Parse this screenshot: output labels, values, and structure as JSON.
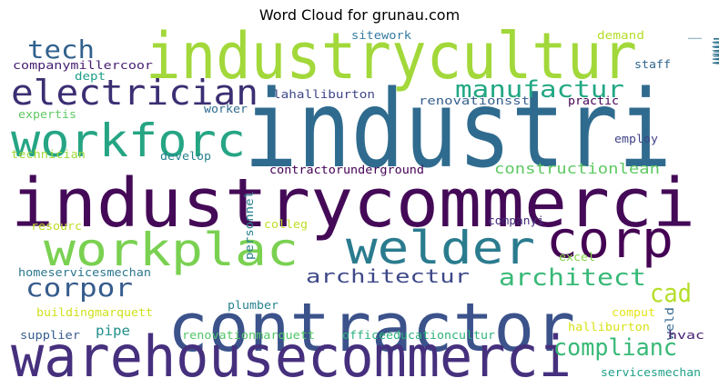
{
  "chart_data": {
    "type": "wordcloud",
    "title": "Word Cloud for grunau.com",
    "words": [
      {
        "text": "industri",
        "color": "#2f6b8e"
      },
      {
        "text": "industrycommerci",
        "color": "#440a57"
      },
      {
        "text": "industrycultur",
        "color": "#a2d83a"
      },
      {
        "text": "contractor",
        "color": "#3b528b"
      },
      {
        "text": "warehousecommerci",
        "color": "#46307e"
      },
      {
        "text": "workplac",
        "color": "#7ad151"
      },
      {
        "text": "welder",
        "color": "#2a7b8e"
      },
      {
        "text": "workforc",
        "color": "#25a584"
      },
      {
        "text": "electrician",
        "color": "#3c2e73"
      },
      {
        "text": "corp",
        "color": "#440154"
      },
      {
        "text": "tech",
        "color": "#30618d"
      },
      {
        "text": "corpor",
        "color": "#365c8d"
      },
      {
        "text": "manufactur",
        "color": "#22a884"
      },
      {
        "text": "architect",
        "color": "#38b977"
      },
      {
        "text": "complianc",
        "color": "#38b977"
      },
      {
        "text": "architectur",
        "color": "#3e4989"
      },
      {
        "text": "compani",
        "color": "#2c718e"
      },
      {
        "text": "cad",
        "color": "#b5de2b"
      },
      {
        "text": "constructionlean",
        "color": "#5ec962"
      },
      {
        "text": "pipe",
        "color": "#22908c"
      },
      {
        "text": "sitework",
        "color": "#357ba2"
      },
      {
        "text": "demand",
        "color": "#b5de2b"
      },
      {
        "text": "companymillercoor",
        "color": "#482173"
      },
      {
        "text": "staff",
        "color": "#31668e"
      },
      {
        "text": "dept",
        "color": "#1f9e89"
      },
      {
        "text": "lahalliburton",
        "color": "#3f4788"
      },
      {
        "text": "renovationsst",
        "color": "#355f8d"
      },
      {
        "text": "practic",
        "color": "#440154"
      },
      {
        "text": "expertis",
        "color": "#5ec962"
      },
      {
        "text": "worker",
        "color": "#2f6c8e"
      },
      {
        "text": "employ",
        "color": "#404387"
      },
      {
        "text": "technician",
        "color": "#a0da39"
      },
      {
        "text": "develop",
        "color": "#26818e"
      },
      {
        "text": "contractorunderground",
        "color": "#440154"
      },
      {
        "text": "resourc",
        "color": "#bddf26"
      },
      {
        "text": "personnel",
        "color": "#277f8e"
      },
      {
        "text": "colleg",
        "color": "#bddf26"
      },
      {
        "text": "companyi",
        "color": "#472d7b"
      },
      {
        "text": "homeservicesmechan",
        "color": "#2a768e"
      },
      {
        "text": "excel",
        "color": "#86d549"
      },
      {
        "text": "plumber",
        "color": "#26828e"
      },
      {
        "text": "buildingmarquett",
        "color": "#d0e11c"
      },
      {
        "text": "comput",
        "color": "#e5e419"
      },
      {
        "text": "supplier",
        "color": "#365d8d"
      },
      {
        "text": "renovationmarquett",
        "color": "#52c569"
      },
      {
        "text": "officeeducationcultur",
        "color": "#2db27d"
      },
      {
        "text": "halliburton",
        "color": "#d8e219"
      },
      {
        "text": "weld",
        "color": "#31668e"
      },
      {
        "text": "hvac",
        "color": "#482173"
      },
      {
        "text": "servicesmechan",
        "color": "#1fa187"
      }
    ]
  }
}
